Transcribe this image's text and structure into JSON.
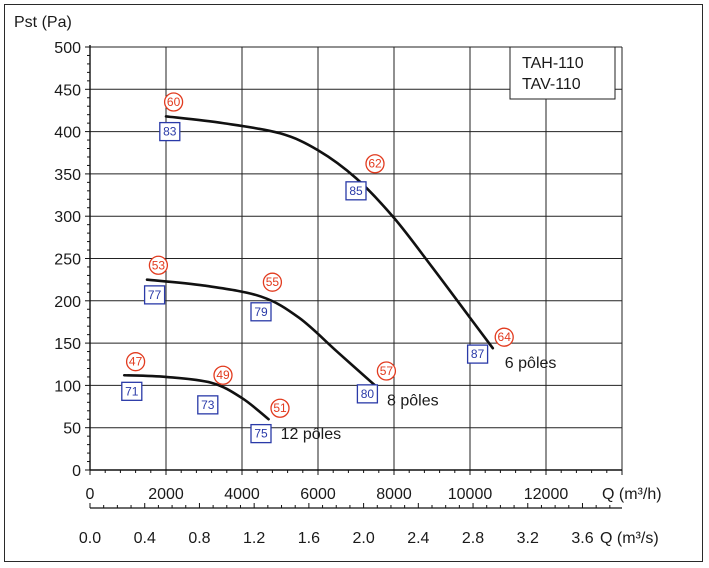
{
  "chart_data": {
    "type": "line",
    "ylabel": "Pst (Pa)",
    "xlabel": "Q (m³/h)",
    "xlabel_secondary": "Q (m³/s)",
    "legend": [
      "TAH-110",
      "TAV-110"
    ],
    "legend_placement": "top-right",
    "grid": true,
    "xlim": [
      0,
      14000
    ],
    "ylim": [
      0,
      500
    ],
    "yticks": [
      0,
      50,
      100,
      150,
      200,
      250,
      300,
      350,
      400,
      450,
      500
    ],
    "xticks": [
      0,
      2000,
      4000,
      6000,
      8000,
      10000,
      12000
    ],
    "xticks_secondary": [
      "0.0",
      "0.4",
      "0.8",
      "1.2",
      "1.6",
      "2.0",
      "2.4",
      "2.8",
      "3.2",
      "3.6"
    ],
    "series": [
      {
        "name": "6 pôles",
        "x": [
          2000,
          3500,
          5000,
          6000,
          7000,
          8000,
          9000,
          10000,
          10600
        ],
        "y": [
          418,
          410,
          398,
          378,
          345,
          298,
          240,
          180,
          144
        ],
        "circle_markers": [
          {
            "label": "60",
            "x": 2200,
            "y": 435
          },
          {
            "label": "62",
            "x": 7500,
            "y": 362
          },
          {
            "label": "64",
            "x": 10900,
            "y": 157
          }
        ],
        "square_markers": [
          {
            "label": "83",
            "x": 2100,
            "y": 400
          },
          {
            "label": "85",
            "x": 7000,
            "y": 330
          },
          {
            "label": "87",
            "x": 10200,
            "y": 137
          }
        ]
      },
      {
        "name": "8 pôles",
        "x": [
          1500,
          3000,
          4500,
          5500,
          6500,
          7500
        ],
        "y": [
          225,
          218,
          205,
          180,
          140,
          100
        ],
        "circle_markers": [
          {
            "label": "53",
            "x": 1800,
            "y": 242
          },
          {
            "label": "55",
            "x": 4800,
            "y": 222
          },
          {
            "label": "57",
            "x": 7800,
            "y": 117
          }
        ],
        "square_markers": [
          {
            "label": "77",
            "x": 1700,
            "y": 207
          },
          {
            "label": "79",
            "x": 4500,
            "y": 187
          },
          {
            "label": "80",
            "x": 7300,
            "y": 90
          }
        ]
      },
      {
        "name": "12 pôles",
        "x": [
          900,
          2000,
          3200,
          4000,
          4700
        ],
        "y": [
          112,
          110,
          103,
          85,
          60
        ],
        "circle_markers": [
          {
            "label": "47",
            "x": 1200,
            "y": 128
          },
          {
            "label": "49",
            "x": 3500,
            "y": 112
          },
          {
            "label": "51",
            "x": 5000,
            "y": 73
          }
        ],
        "square_markers": [
          {
            "label": "71",
            "x": 1100,
            "y": 93
          },
          {
            "label": "73",
            "x": 3100,
            "y": 77
          },
          {
            "label": "75",
            "x": 4500,
            "y": 43
          }
        ]
      }
    ]
  },
  "colors": {
    "curve": "#111111",
    "circle_marker": "#e23b1f",
    "square_marker": "#2a3aa8",
    "grid": "#222222"
  }
}
